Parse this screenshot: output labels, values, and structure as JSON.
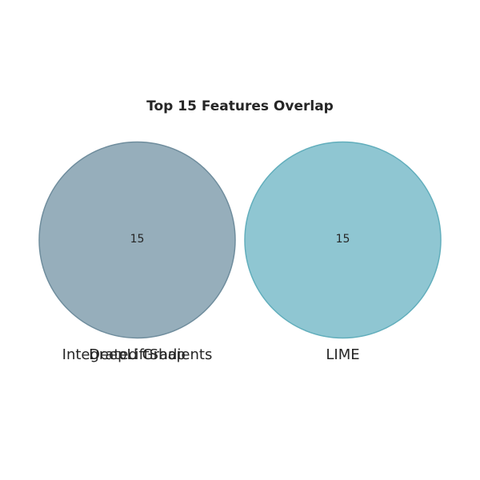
{
  "chart_data": {
    "type": "venn",
    "title": "Top 15 Features Overlap",
    "sets": [
      {
        "name": "Integrated Gradients",
        "count": 15,
        "color": "#7f9cac"
      },
      {
        "name": "DeepLiftShap",
        "count": 15,
        "color": "#7f9cac"
      },
      {
        "name": "LIME",
        "count": 15,
        "color": "#76bac8"
      }
    ],
    "intersections": [],
    "counts": {
      "left": "15",
      "right": "15"
    },
    "colors": {
      "left_fill": "#7f9cac",
      "left_stroke": "#6f8d9d",
      "right_fill": "#76bac8",
      "right_stroke": "#62aebc"
    }
  }
}
